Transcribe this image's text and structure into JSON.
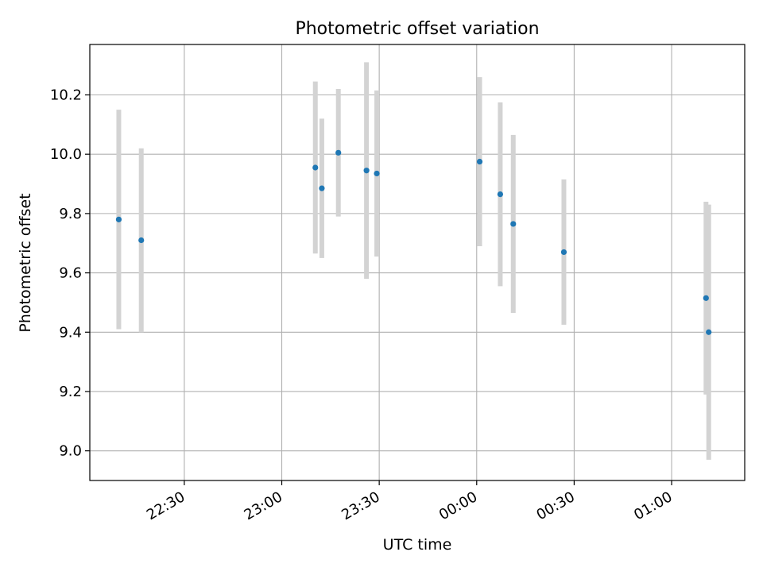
{
  "chart_data": {
    "type": "scatter",
    "title": "Photometric offset variation",
    "xlabel": "UTC time",
    "ylabel": "Photometric offset",
    "x_ticks": [
      "22:30",
      "23:00",
      "23:30",
      "00:00",
      "00:30",
      "01:00"
    ],
    "y_ticks": [
      "9.0",
      "9.2",
      "9.4",
      "9.6",
      "9.8",
      "10.0",
      "10.2"
    ],
    "xlim": [
      "22:00:55",
      "01:22:30"
    ],
    "ylim": [
      8.9,
      10.37
    ],
    "grid": true,
    "point_color": "#1f77b4",
    "errorbar_color": "#d3d3d3",
    "points": [
      {
        "x": "22:09:50",
        "y": 9.78,
        "err": 0.37
      },
      {
        "x": "22:16:45",
        "y": 9.71,
        "err": 0.31
      },
      {
        "x": "23:10:20",
        "y": 9.955,
        "err": 0.29
      },
      {
        "x": "23:12:20",
        "y": 9.885,
        "err": 0.235
      },
      {
        "x": "23:17:25",
        "y": 10.005,
        "err": 0.215
      },
      {
        "x": "23:26:05",
        "y": 9.945,
        "err": 0.365
      },
      {
        "x": "23:29:15",
        "y": 9.935,
        "err": 0.28
      },
      {
        "x": "00:00:55",
        "y": 9.975,
        "err": 0.285
      },
      {
        "x": "00:07:15",
        "y": 9.865,
        "err": 0.31
      },
      {
        "x": "00:11:15",
        "y": 9.765,
        "err": 0.3
      },
      {
        "x": "00:26:50",
        "y": 9.67,
        "err": 0.245
      },
      {
        "x": "01:10:35",
        "y": 9.515,
        "err": 0.325
      },
      {
        "x": "01:11:25",
        "y": 9.4,
        "err": 0.43
      }
    ]
  }
}
